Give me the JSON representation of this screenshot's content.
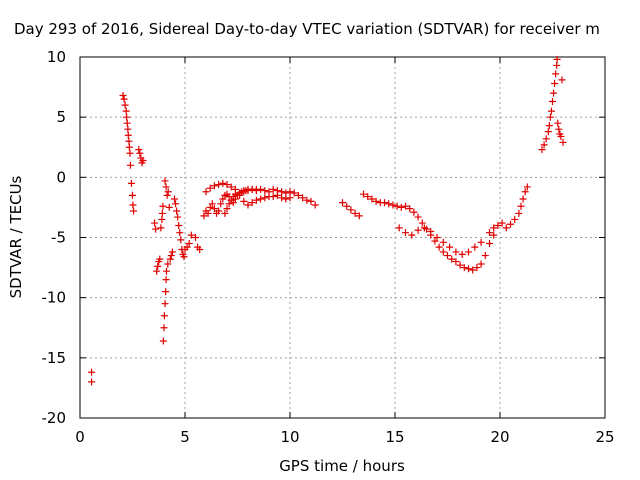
{
  "chart_data": {
    "type": "scatter",
    "title": "Day 293 of 2016, Sidereal Day-to-day VTEC variation (SDTVAR) for receiver m",
    "xlabel": "GPS time / hours",
    "ylabel": "SDTVAR / TECUs",
    "xlim": [
      0,
      25
    ],
    "ylim": [
      -20,
      10
    ],
    "xticks": [
      0,
      5,
      10,
      15,
      20,
      25
    ],
    "yticks": [
      -20,
      -15,
      -10,
      -5,
      0,
      5,
      10
    ],
    "grid": true,
    "marker": "plus",
    "color": "#e00000",
    "series": [
      {
        "x": [
          0.55,
          0.55,
          2.05,
          2.1,
          2.15,
          2.2,
          2.22,
          2.25,
          2.28,
          2.3,
          2.33,
          2.35,
          2.38,
          2.4,
          2.45,
          2.5,
          2.52,
          2.55,
          2.8,
          2.85,
          2.9,
          2.95,
          3.0,
          3.55,
          3.6,
          3.65,
          3.7,
          3.75,
          3.8,
          3.85,
          3.9,
          3.92,
          3.95,
          3.97,
          4.0,
          4.02,
          4.05,
          4.05,
          4.08,
          4.1,
          4.1,
          4.12,
          4.15,
          4.18,
          4.2,
          4.25,
          4.3,
          4.35,
          4.4,
          4.5,
          4.55,
          4.6,
          4.65,
          4.7,
          4.75,
          4.8,
          4.85,
          4.9,
          4.95,
          5.0,
          5.1,
          5.2,
          5.3,
          5.5,
          5.6,
          5.7,
          5.9,
          6.0,
          6.1,
          6.2,
          6.3,
          6.4,
          6.5,
          6.6,
          6.7,
          6.8,
          6.9,
          7.0,
          7.1,
          7.2,
          7.3,
          7.4,
          7.5,
          7.6,
          7.7,
          7.8,
          7.9,
          8.0,
          8.2,
          8.4,
          8.6,
          8.8,
          9.0,
          9.2,
          9.4,
          9.6,
          9.8,
          10.0,
          10.2,
          10.4,
          10.6,
          10.8,
          11.0,
          11.2,
          6.0,
          6.2,
          6.4,
          6.6,
          6.8,
          7.0,
          7.2,
          7.4,
          7.6,
          7.8,
          8.0,
          8.2,
          8.4,
          8.6,
          8.8,
          9.0,
          9.2,
          9.4,
          9.6,
          9.8,
          10.0,
          6.9,
          7.0,
          7.1,
          7.2,
          7.3,
          7.4,
          7.6,
          7.8,
          8.0,
          8.2,
          8.4,
          12.5,
          12.7,
          12.9,
          13.1,
          13.3,
          13.5,
          13.7,
          13.9,
          14.1,
          14.3,
          14.5,
          14.7,
          14.9,
          15.1,
          15.3,
          15.5,
          15.7,
          15.9,
          16.1,
          16.3,
          16.5,
          16.7,
          16.9,
          17.1,
          17.3,
          17.5,
          17.7,
          17.9,
          18.1,
          18.3,
          18.5,
          18.7,
          18.9,
          19.1,
          19.3,
          19.5,
          19.7,
          15.2,
          15.5,
          15.8,
          16.1,
          16.4,
          16.7,
          17.0,
          17.3,
          17.6,
          17.9,
          18.2,
          18.5,
          18.8,
          19.1,
          19.5,
          19.7,
          19.9,
          20.1,
          20.3,
          20.5,
          20.7,
          20.9,
          21.0,
          21.1,
          21.2,
          21.3,
          22.0,
          22.1,
          22.2,
          22.3,
          22.35,
          22.4,
          22.45,
          22.5,
          22.55,
          22.6,
          22.65,
          22.7,
          22.72,
          22.75,
          22.8,
          22.85,
          22.9,
          22.95,
          23.0
        ],
        "y": [
          -16.2,
          -17.0,
          6.8,
          6.5,
          6.0,
          5.5,
          5.0,
          4.5,
          4.0,
          3.5,
          3.0,
          2.5,
          2.0,
          1.0,
          -0.5,
          -1.5,
          -2.3,
          -2.8,
          2.3,
          2.0,
          1.6,
          1.2,
          1.4,
          -3.8,
          -4.3,
          -7.8,
          -7.4,
          -7.0,
          -6.8,
          -4.2,
          -3.5,
          -3.0,
          -2.4,
          -13.6,
          -12.5,
          -11.5,
          -0.3,
          -10.5,
          -9.5,
          -0.8,
          -8.5,
          -7.8,
          -1.5,
          -7.2,
          -1.2,
          -2.5,
          -6.8,
          -6.5,
          -6.2,
          -1.8,
          -2.2,
          -2.8,
          -3.3,
          -4.0,
          -4.6,
          -5.2,
          -6.0,
          -6.4,
          -6.6,
          -6.0,
          -5.8,
          -5.5,
          -4.8,
          -5.0,
          -5.8,
          -6.0,
          -3.2,
          -2.8,
          -3.0,
          -2.5,
          -2.2,
          -2.6,
          -3.0,
          -2.8,
          -2.2,
          -1.8,
          -1.5,
          -1.4,
          -1.6,
          -1.9,
          -2.1,
          -1.8,
          -1.5,
          -1.3,
          -1.2,
          -1.1,
          -1.1,
          -1.0,
          -1.0,
          -1.1,
          -1.0,
          -1.1,
          -1.2,
          -1.0,
          -1.1,
          -1.2,
          -1.3,
          -1.2,
          -1.3,
          -1.5,
          -1.7,
          -1.9,
          -2.0,
          -2.3,
          -1.2,
          -0.9,
          -0.7,
          -0.6,
          -0.5,
          -0.6,
          -0.8,
          -1.0,
          -1.5,
          -2.0,
          -2.3,
          -2.1,
          -1.9,
          -1.8,
          -1.7,
          -1.6,
          -1.6,
          -1.5,
          -1.7,
          -1.8,
          -1.7,
          -3.0,
          -2.6,
          -2.2,
          -1.9,
          -1.6,
          -1.4,
          -1.3,
          -1.2,
          -1.1,
          -1.0,
          -1.0,
          -2.1,
          -2.4,
          -2.7,
          -3.0,
          -3.2,
          -1.4,
          -1.6,
          -1.8,
          -2.0,
          -2.1,
          -2.1,
          -2.2,
          -2.3,
          -2.4,
          -2.5,
          -2.4,
          -2.6,
          -2.9,
          -3.3,
          -3.8,
          -4.3,
          -4.8,
          -5.3,
          -5.8,
          -6.2,
          -6.5,
          -6.8,
          -7.0,
          -7.3,
          -7.5,
          -7.6,
          -7.7,
          -7.5,
          -7.2,
          -6.5,
          -5.5,
          -4.8,
          -4.2,
          -4.6,
          -4.8,
          -4.4,
          -4.2,
          -4.5,
          -5.0,
          -5.4,
          -5.8,
          -6.2,
          -6.4,
          -6.2,
          -5.8,
          -5.4,
          -4.6,
          -4.2,
          -4.0,
          -3.8,
          -4.2,
          -3.9,
          -3.5,
          -3.0,
          -2.4,
          -1.8,
          -1.2,
          -0.8,
          2.3,
          2.7,
          3.2,
          3.8,
          4.3,
          5.0,
          5.5,
          6.3,
          7.0,
          7.8,
          8.6,
          9.3,
          9.8,
          4.5,
          4.0,
          3.6,
          3.4,
          8.1,
          2.9
        ]
      }
    ]
  }
}
